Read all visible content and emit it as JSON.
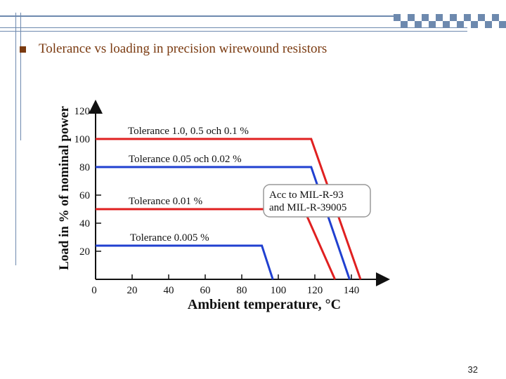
{
  "slide": {
    "title": "Tolerance vs loading in precision wirewound resistors",
    "page_number": "32"
  },
  "colors": {
    "title": "#7a3a10",
    "accent_bar": "#5f7fa8",
    "red": "#e02020",
    "blue": "#2040d0"
  },
  "chart_data": {
    "type": "line",
    "title": "",
    "xlabel": "Ambient temperature, °C",
    "ylabel": "Load in % of nominal power",
    "xlim": [
      0,
      155
    ],
    "ylim": [
      0,
      130
    ],
    "x_ticks": [
      "0",
      "20",
      "40",
      "60",
      "80",
      "100",
      "120",
      "140"
    ],
    "y_ticks": [
      "20",
      "40",
      "60",
      "80",
      "100",
      "120"
    ],
    "grid": false,
    "series": [
      {
        "name": "Tolerance 1.0, 0.5 och 0.1 %",
        "color": "red",
        "points": [
          [
            0,
            100
          ],
          [
            118,
            100
          ],
          [
            145,
            0
          ]
        ]
      },
      {
        "name": "Tolerance 0.05 och 0.02 %",
        "color": "blue",
        "points": [
          [
            0,
            80
          ],
          [
            118,
            80
          ],
          [
            139,
            0
          ]
        ]
      },
      {
        "name": "Tolerance 0.01 %",
        "color": "red",
        "points": [
          [
            0,
            50
          ],
          [
            114,
            50
          ],
          [
            131,
            0
          ]
        ]
      },
      {
        "name": "Tolerance 0.005 %",
        "color": "blue",
        "points": [
          [
            0,
            24
          ],
          [
            91,
            24
          ],
          [
            97,
            0
          ]
        ]
      }
    ],
    "annotation": {
      "lines": [
        "Acc to MIL-R-93",
        "and MIL-R-39005"
      ]
    }
  }
}
